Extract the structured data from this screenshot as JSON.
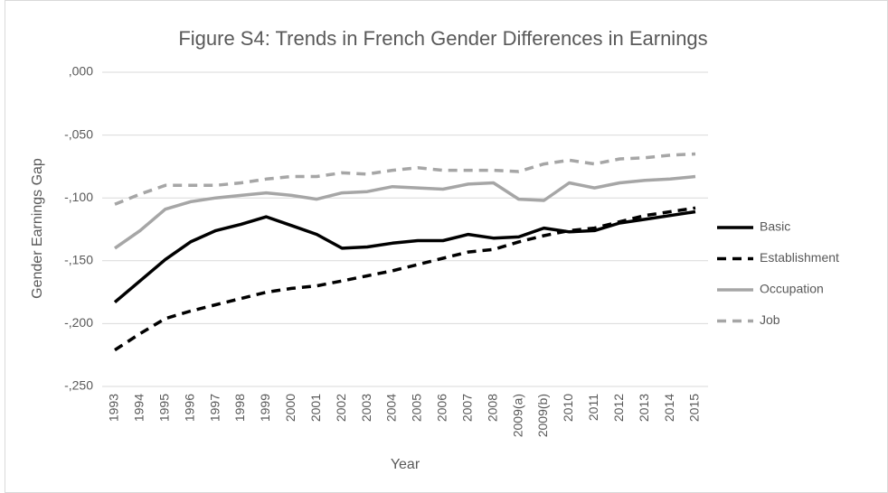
{
  "chart_data": {
    "type": "line",
    "title": "Figure S4: Trends in French Gender Differences in Earnings",
    "x_label": "Year",
    "y_label": "Gender Earnings Gap",
    "categories": [
      "1993",
      "1994",
      "1995",
      "1996",
      "1997",
      "1998",
      "1999",
      "2000",
      "2001",
      "2002",
      "2003",
      "2004",
      "2005",
      "2006",
      "2007",
      "2008",
      "2009(a)",
      "2009(b)",
      "2010",
      "2011",
      "2012",
      "2013",
      "2014",
      "2015"
    ],
    "series": [
      {
        "name": "Basic",
        "color": "#000000",
        "dashed": false,
        "values": [
          -0.183,
          -0.166,
          -0.149,
          -0.135,
          -0.126,
          -0.121,
          -0.115,
          -0.122,
          -0.129,
          -0.14,
          -0.139,
          -0.136,
          -0.134,
          -0.134,
          -0.129,
          -0.132,
          -0.131,
          -0.124,
          -0.127,
          -0.126,
          -0.12,
          -0.117,
          -0.114,
          -0.111
        ]
      },
      {
        "name": "Establishment",
        "color": "#000000",
        "dashed": true,
        "values": [
          -0.221,
          -0.208,
          -0.196,
          -0.19,
          -0.185,
          -0.18,
          -0.175,
          -0.172,
          -0.17,
          -0.166,
          -0.162,
          -0.158,
          -0.153,
          -0.148,
          -0.143,
          -0.141,
          -0.135,
          -0.13,
          -0.126,
          -0.124,
          -0.119,
          -0.114,
          -0.111,
          -0.108
        ]
      },
      {
        "name": "Occupation",
        "color": "#a6a6a6",
        "dashed": false,
        "values": [
          -0.14,
          -0.126,
          -0.109,
          -0.103,
          -0.1,
          -0.098,
          -0.096,
          -0.098,
          -0.101,
          -0.096,
          -0.095,
          -0.091,
          -0.092,
          -0.093,
          -0.089,
          -0.088,
          -0.101,
          -0.102,
          -0.088,
          -0.092,
          -0.088,
          -0.086,
          -0.085,
          -0.083
        ]
      },
      {
        "name": "Job",
        "color": "#a6a6a6",
        "dashed": true,
        "values": [
          -0.105,
          -0.097,
          -0.09,
          -0.09,
          -0.09,
          -0.088,
          -0.085,
          -0.083,
          -0.083,
          -0.08,
          -0.081,
          -0.078,
          -0.076,
          -0.078,
          -0.078,
          -0.078,
          -0.079,
          -0.073,
          -0.07,
          -0.073,
          -0.069,
          -0.068,
          -0.066,
          -0.065
        ]
      }
    ],
    "ylim": [
      -0.25,
      0
    ],
    "yticks": [
      {
        "value": 0,
        "label": ",000"
      },
      {
        "value": -0.05,
        "label": "-,050"
      },
      {
        "value": -0.1,
        "label": "-,100"
      },
      {
        "value": -0.15,
        "label": "-,150"
      },
      {
        "value": -0.2,
        "label": "-,200"
      },
      {
        "value": -0.25,
        "label": "-,250"
      }
    ],
    "grid": true,
    "legend": "right"
  }
}
